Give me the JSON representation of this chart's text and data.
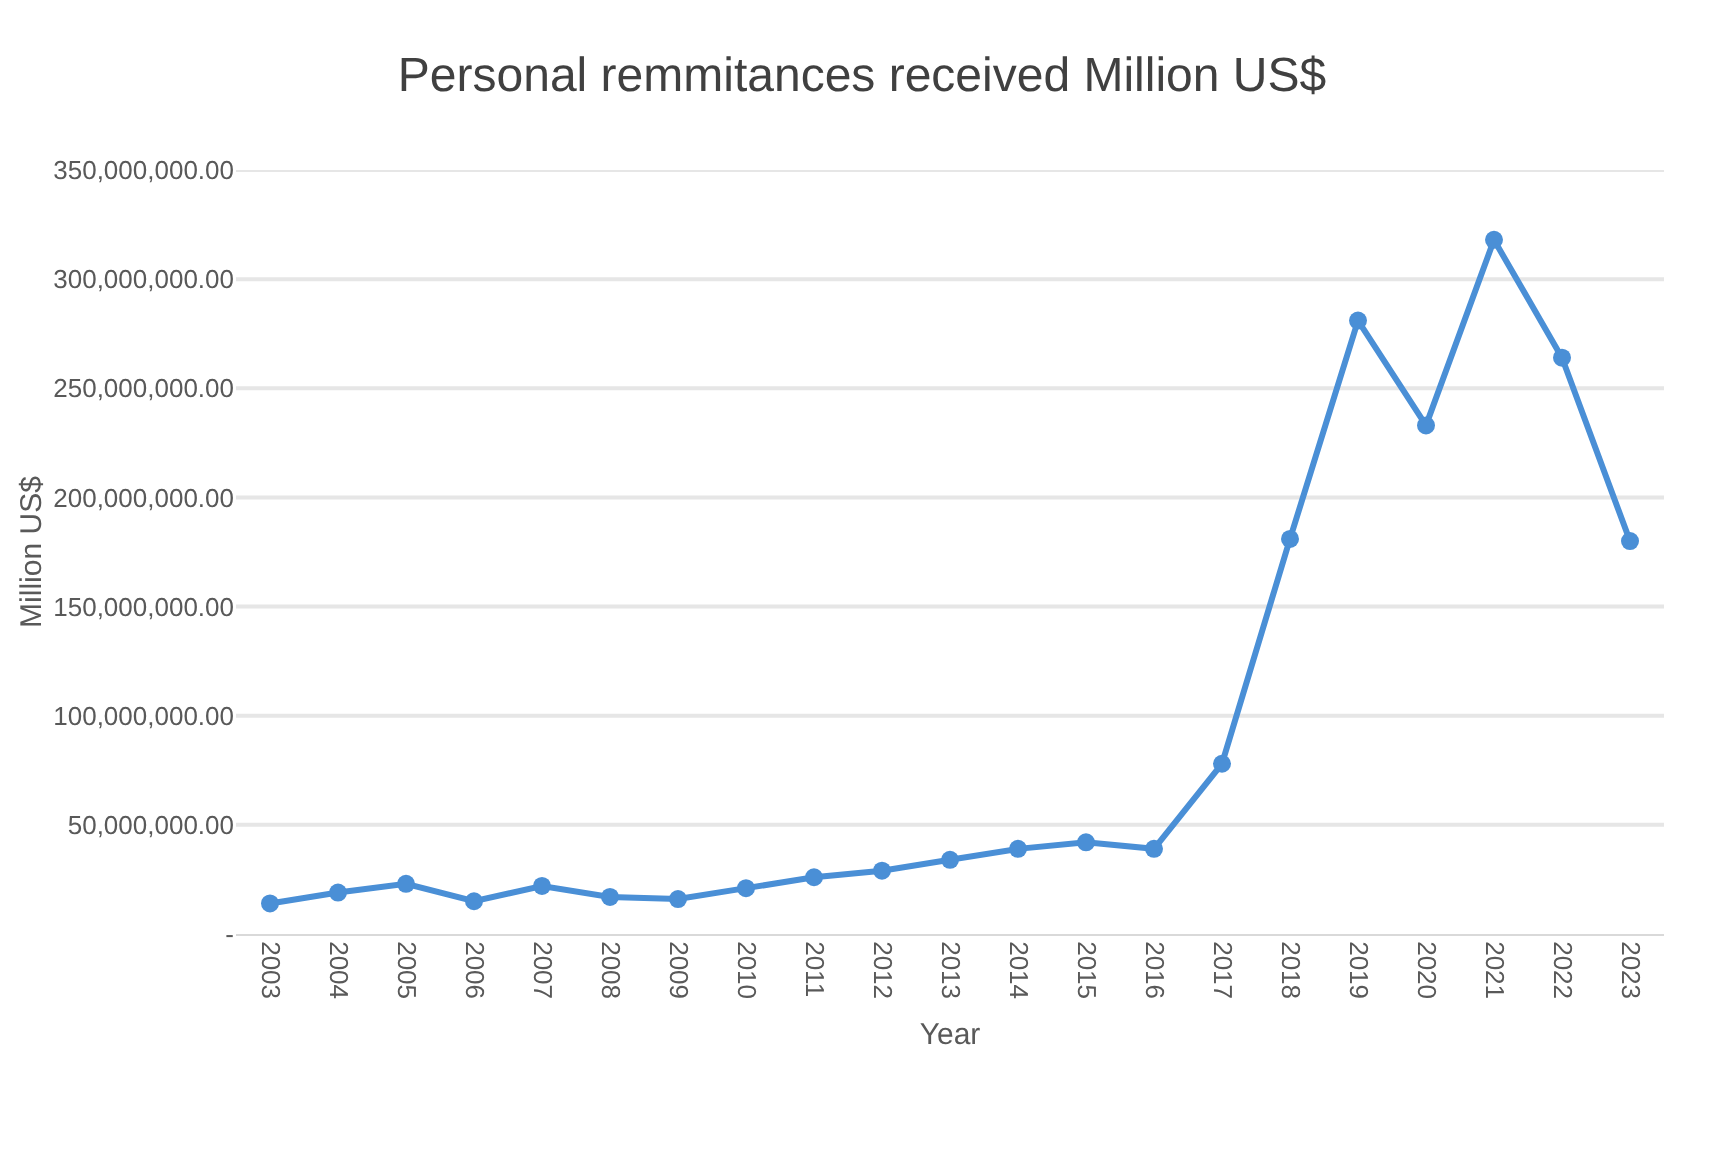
{
  "chart_data": {
    "type": "line",
    "title": "Personal remmitances received Million US$",
    "xlabel": "Year",
    "ylabel": "Million US$",
    "categories": [
      "2003",
      "2004",
      "2005",
      "2006",
      "2007",
      "2008",
      "2009",
      "2010",
      "2011",
      "2012",
      "2013",
      "2014",
      "2015",
      "2016",
      "2017",
      "2018",
      "2019",
      "2020",
      "2021",
      "2022",
      "2023"
    ],
    "series": [
      {
        "color": "#4a8fd6",
        "values": [
          14000000,
          19000000,
          23000000,
          15000000,
          22000000,
          17000000,
          16000000,
          21000000,
          26000000,
          29000000,
          34000000,
          39000000,
          42000000,
          39000000,
          78000000,
          181000000,
          281000000,
          233000000,
          318000000,
          264000000,
          180000000
        ]
      }
    ],
    "ylim": [
      0,
      350000000
    ],
    "yticks": [
      {
        "value": 0,
        "label": "-"
      },
      {
        "value": 50000000,
        "label": "50,000,000.00"
      },
      {
        "value": 100000000,
        "label": "100,000,000.00"
      },
      {
        "value": 150000000,
        "label": "150,000,000.00"
      },
      {
        "value": 200000000,
        "label": "200,000,000.00"
      },
      {
        "value": 250000000,
        "label": "250,000,000.00"
      },
      {
        "value": 300000000,
        "label": "300,000,000.00"
      },
      {
        "value": 350000000,
        "label": "350,000,000.00"
      }
    ],
    "grid": "y",
    "marker": "circle",
    "line_style": "solid"
  }
}
